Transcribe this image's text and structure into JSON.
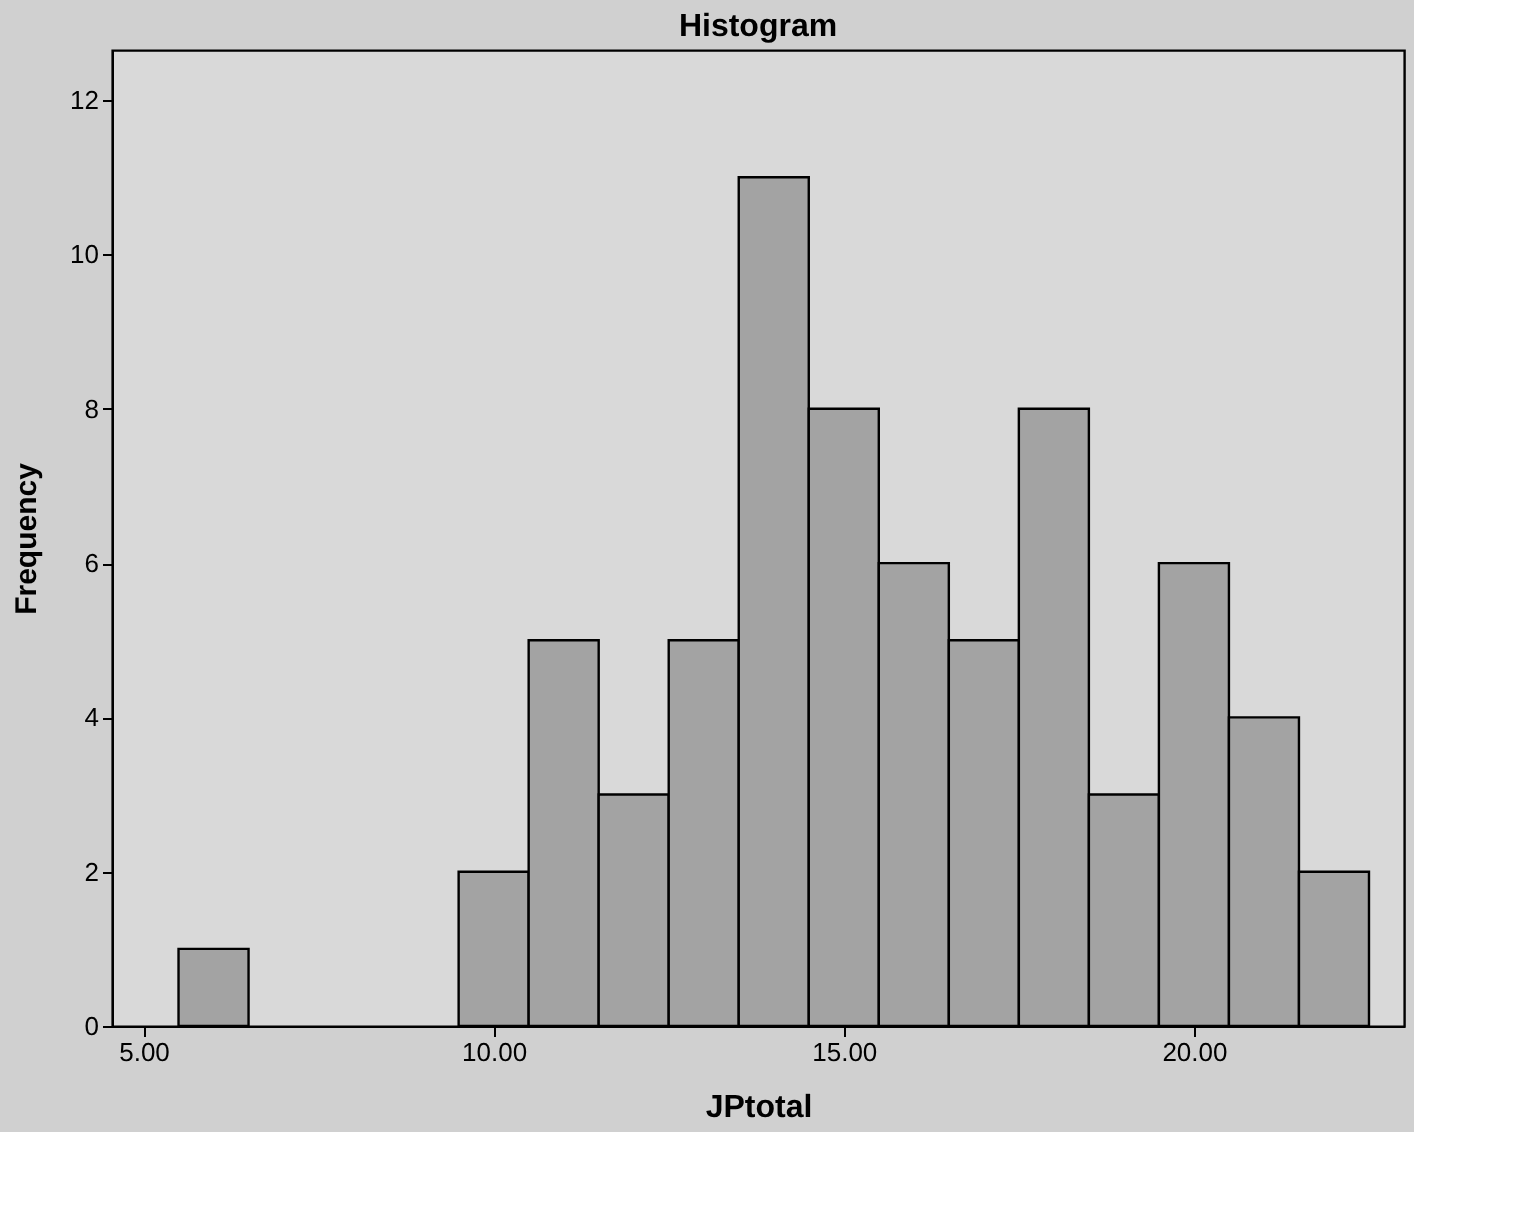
{
  "chart_data": {
    "type": "histogram",
    "title": "Histogram",
    "xlabel": "JPtotal",
    "ylabel": "Frequency",
    "bins": [
      5.5,
      6.5,
      7.5,
      8.5,
      9.5,
      10.5,
      11.5,
      12.5,
      13.5,
      14.5,
      15.5,
      16.5,
      17.5,
      18.5,
      19.5,
      20.5,
      21.5,
      22.5
    ],
    "values": [
      1,
      0,
      0,
      0,
      2,
      5,
      3,
      5,
      11,
      8,
      6,
      5,
      8,
      3,
      6,
      4,
      2
    ],
    "color": "#a3a3a3",
    "xlim": [
      4.55,
      23.0
    ],
    "xticks": [
      {
        "value": 5,
        "label": "5.00"
      },
      {
        "value": 10,
        "label": "10.00"
      },
      {
        "value": 15,
        "label": "15.00"
      },
      {
        "value": 20,
        "label": "20.00"
      }
    ],
    "ylim": [
      0,
      12.65
    ],
    "yticks": [
      0,
      2,
      4,
      6,
      8,
      10,
      12
    ],
    "grid": false
  }
}
